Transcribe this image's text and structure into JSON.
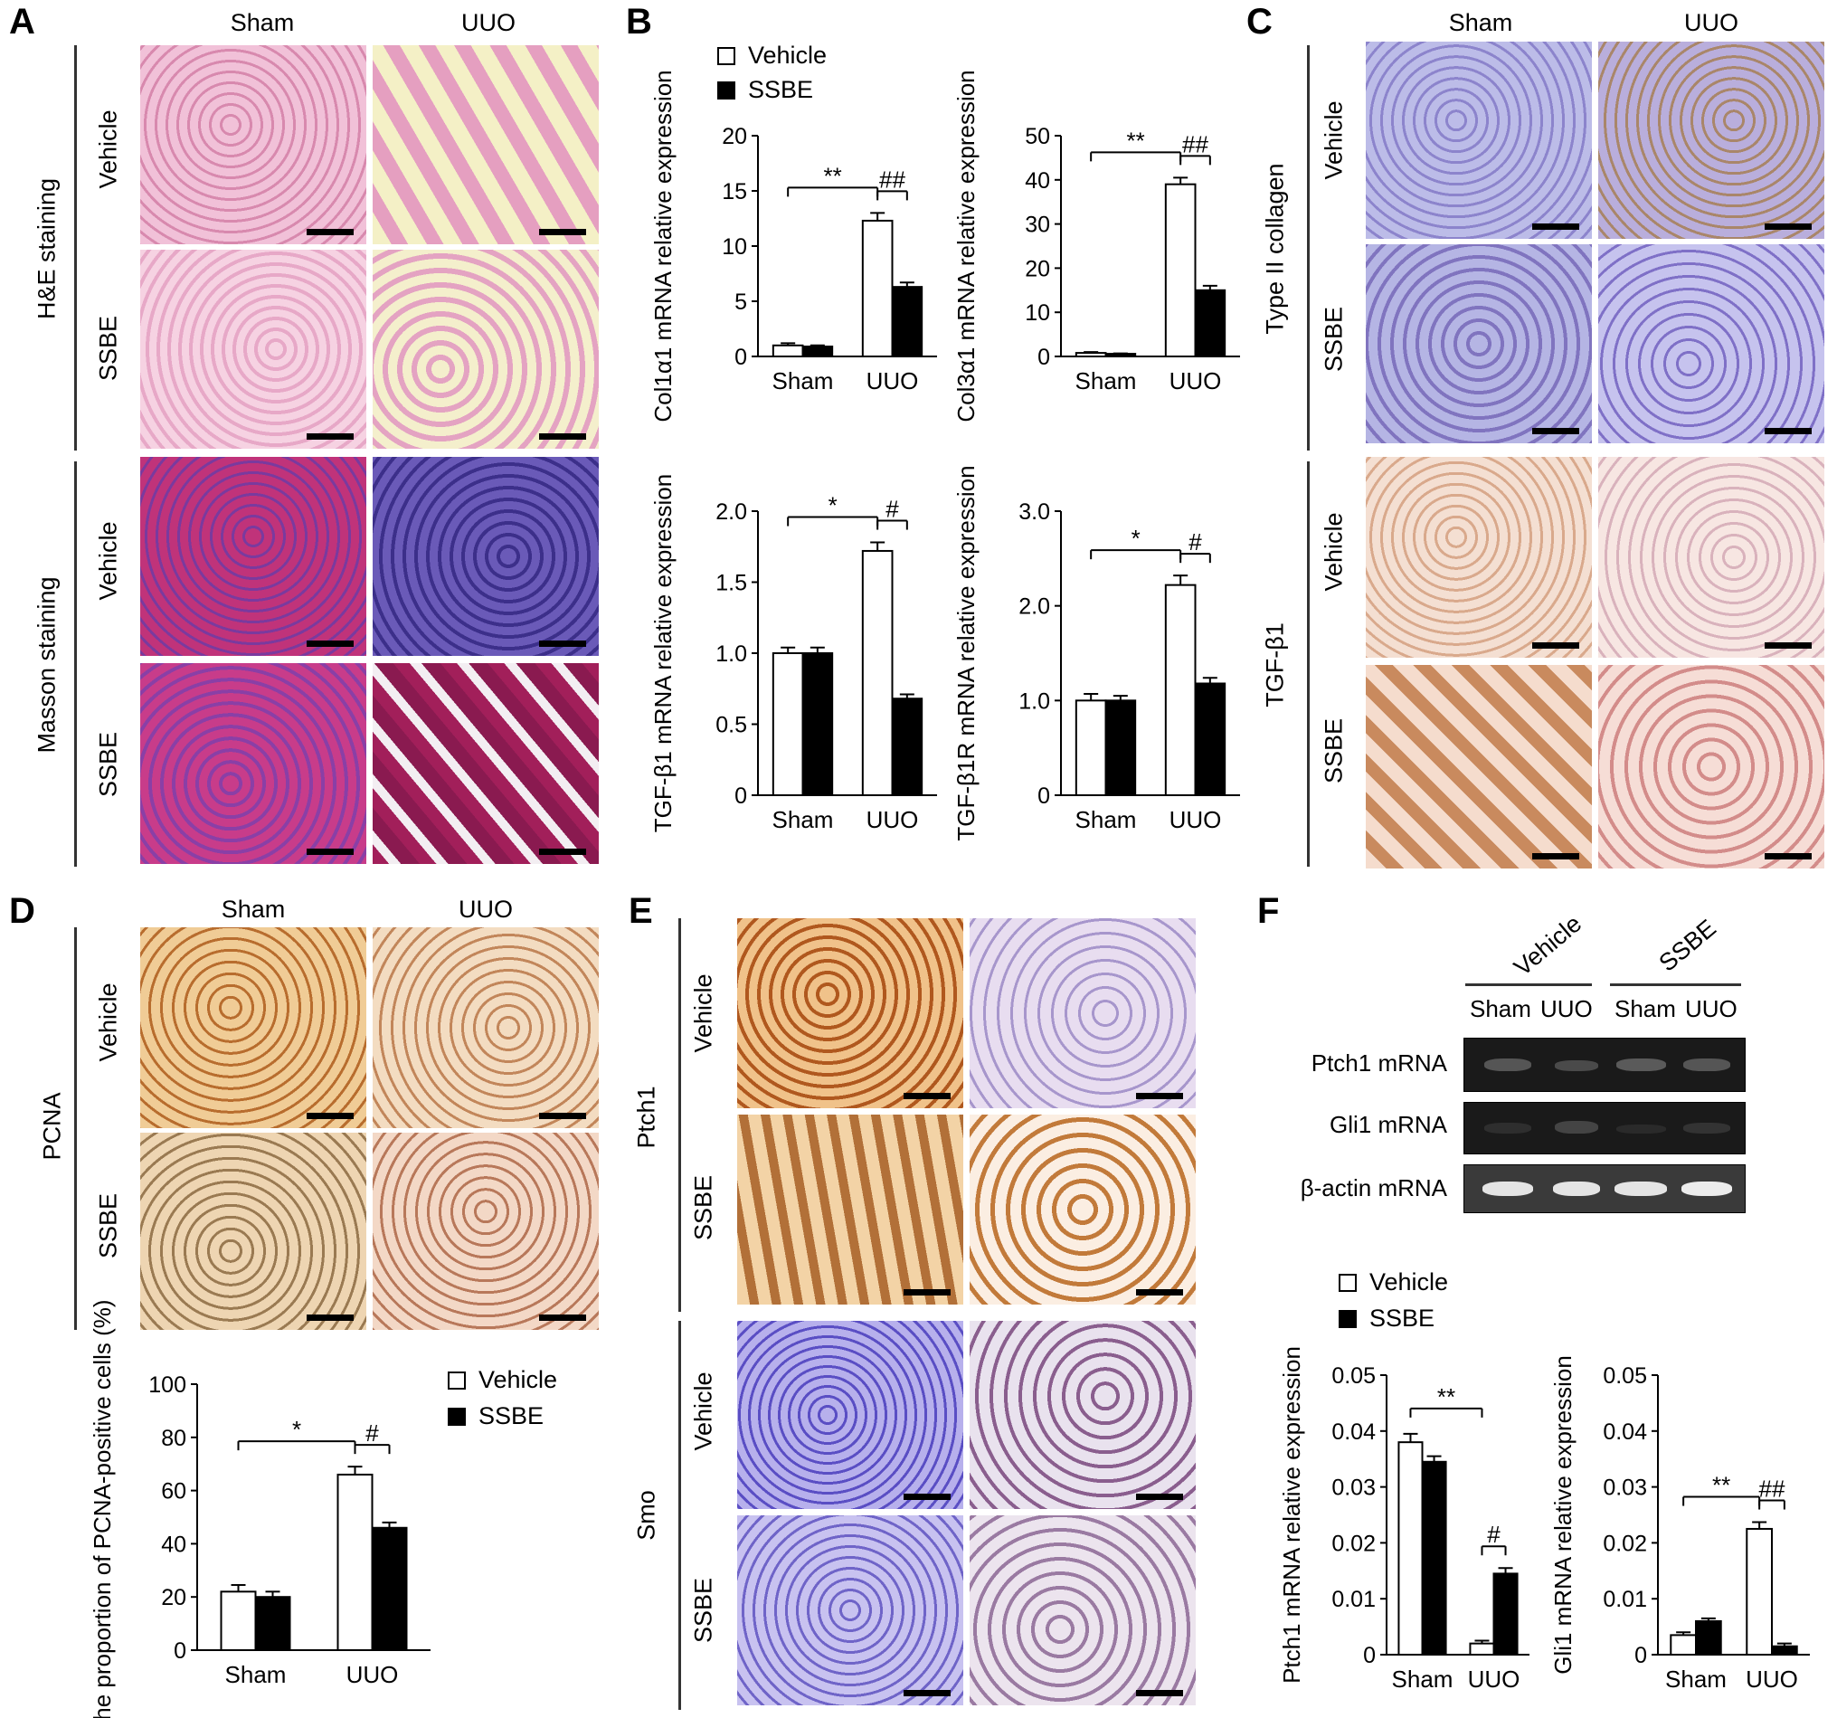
{
  "panels": {
    "A": {
      "letter": "A",
      "col_sham": "Sham",
      "col_uuo": "UUO",
      "group1": "H&E staining",
      "group2": "Masson staining",
      "row_vehicle": "Vehicle",
      "row_ssbe": "SSBE"
    },
    "B": {
      "letter": "B"
    },
    "C": {
      "letter": "C",
      "col_sham": "Sham",
      "col_uuo": "UUO",
      "group1": "Type II collagen",
      "group2": "TGF-β1",
      "row_vehicle": "Vehicle",
      "row_ssbe": "SSBE"
    },
    "D": {
      "letter": "D",
      "col_sham": "Sham",
      "col_uuo": "UUO",
      "group": "PCNA",
      "row_vehicle": "Vehicle",
      "row_ssbe": "SSBE"
    },
    "E": {
      "letter": "E",
      "group1": "Ptch1",
      "group2": "Smo",
      "row_vehicle": "Vehicle",
      "row_ssbe": "SSBE"
    },
    "F": {
      "letter": "F",
      "group_vehicle": "Vehicle",
      "group_ssbe": "SSBE",
      "lane_sham": "Sham",
      "lane_uuo": "UUO",
      "row1": "Ptch1 mRNA",
      "row2": "Gli1 mRNA",
      "row3": "β-actin mRNA"
    }
  },
  "legend": {
    "vehicle": "Vehicle",
    "ssbe": "SSBE"
  },
  "colors": {
    "vehicle": "#ffffff",
    "ssbe": "#000000",
    "he": "#e9a9c4",
    "masson_red": "#b0306e",
    "masson_blue": "#5a4aa8",
    "ihc_blue": "#9a9ad8",
    "ihc_brown": "#d9a36a",
    "gel": "#1a1a1a"
  },
  "chart_data": [
    {
      "id": "col1a1",
      "type": "bar",
      "categories": [
        "Sham",
        "UUO"
      ],
      "series": [
        {
          "name": "Vehicle",
          "values": [
            1.0,
            12.3
          ],
          "err": [
            0.2,
            0.7
          ]
        },
        {
          "name": "SSBE",
          "values": [
            0.9,
            6.3
          ],
          "err": [
            0.1,
            0.4
          ]
        }
      ],
      "ylabel": "Col1α1 mRNA relative expression",
      "ylim": [
        0,
        20
      ],
      "yticks": [
        "0",
        "5",
        "10",
        "15",
        "20"
      ],
      "sig": [
        {
          "label": "**",
          "from": [
            0,
            0
          ],
          "to": [
            1,
            0
          ]
        },
        {
          "label": "##",
          "from": [
            1,
            0
          ],
          "to": [
            1,
            1
          ]
        }
      ]
    },
    {
      "id": "col3a1",
      "type": "bar",
      "categories": [
        "Sham",
        "UUO"
      ],
      "series": [
        {
          "name": "Vehicle",
          "values": [
            0.8,
            39.0
          ],
          "err": [
            0.2,
            1.5
          ]
        },
        {
          "name": "SSBE",
          "values": [
            0.6,
            15.0
          ],
          "err": [
            0.1,
            1.0
          ]
        }
      ],
      "ylabel": "Col3α1 mRNA relative expression",
      "ylim": [
        0,
        50
      ],
      "yticks": [
        "0",
        "10",
        "20",
        "30",
        "40",
        "50"
      ],
      "sig": [
        {
          "label": "**",
          "from": [
            0,
            0
          ],
          "to": [
            1,
            0
          ]
        },
        {
          "label": "##",
          "from": [
            1,
            0
          ],
          "to": [
            1,
            1
          ]
        }
      ]
    },
    {
      "id": "tgfb1",
      "type": "bar",
      "categories": [
        "Sham",
        "UUO"
      ],
      "series": [
        {
          "name": "Vehicle",
          "values": [
            1.0,
            1.72
          ],
          "err": [
            0.04,
            0.06
          ]
        },
        {
          "name": "SSBE",
          "values": [
            1.0,
            0.68
          ],
          "err": [
            0.04,
            0.03
          ]
        }
      ],
      "ylabel": "TGF-β1 mRNA relative expression",
      "ylim": [
        0,
        2.0
      ],
      "yticks": [
        "0",
        "0.5",
        "1.0",
        "1.5",
        "2.0"
      ],
      "sig": [
        {
          "label": "*",
          "from": [
            0,
            0
          ],
          "to": [
            1,
            0
          ]
        },
        {
          "label": "#",
          "from": [
            1,
            0
          ],
          "to": [
            1,
            1
          ]
        }
      ]
    },
    {
      "id": "tgfb1r",
      "type": "bar",
      "categories": [
        "Sham",
        "UUO"
      ],
      "series": [
        {
          "name": "Vehicle",
          "values": [
            1.0,
            2.22
          ],
          "err": [
            0.07,
            0.1
          ]
        },
        {
          "name": "SSBE",
          "values": [
            1.0,
            1.18
          ],
          "err": [
            0.05,
            0.06
          ]
        }
      ],
      "ylabel": "TGF-β1R mRNA relative expression",
      "ylim": [
        0,
        3.0
      ],
      "yticks": [
        "0",
        "1.0",
        "2.0",
        "3.0"
      ],
      "sig": [
        {
          "label": "*",
          "from": [
            0,
            0
          ],
          "to": [
            1,
            0
          ]
        },
        {
          "label": "#",
          "from": [
            1,
            0
          ],
          "to": [
            1,
            1
          ]
        }
      ]
    },
    {
      "id": "pcna",
      "type": "bar",
      "categories": [
        "Sham",
        "UUO"
      ],
      "series": [
        {
          "name": "Vehicle",
          "values": [
            22,
            66
          ],
          "err": [
            2.5,
            3
          ]
        },
        {
          "name": "SSBE",
          "values": [
            20,
            46
          ],
          "err": [
            2,
            2
          ]
        }
      ],
      "ylabel": "The proportion of PCNA-positive cells (%)",
      "ylim": [
        0,
        100
      ],
      "yticks": [
        "0",
        "20",
        "40",
        "60",
        "80",
        "100"
      ],
      "sig": [
        {
          "label": "*",
          "from": [
            0,
            0
          ],
          "to": [
            1,
            0
          ]
        },
        {
          "label": "#",
          "from": [
            1,
            0
          ],
          "to": [
            1,
            1
          ]
        }
      ]
    },
    {
      "id": "ptch1",
      "type": "bar",
      "categories": [
        "Sham",
        "UUO"
      ],
      "series": [
        {
          "name": "Vehicle",
          "values": [
            0.038,
            0.002
          ],
          "err": [
            0.0015,
            0.0005
          ]
        },
        {
          "name": "SSBE",
          "values": [
            0.0345,
            0.0145
          ],
          "err": [
            0.001,
            0.001
          ]
        }
      ],
      "ylabel": "Ptch1 mRNA relative expression",
      "ylim": [
        0,
        0.05
      ],
      "yticks": [
        "0",
        "0.01",
        "0.02",
        "0.03",
        "0.04",
        "0.05"
      ],
      "sig": [
        {
          "label": "**",
          "from": [
            0,
            0
          ],
          "to": [
            1,
            0
          ]
        },
        {
          "label": "#",
          "from": [
            1,
            0
          ],
          "to": [
            1,
            1
          ]
        }
      ]
    },
    {
      "id": "gli1",
      "type": "bar",
      "categories": [
        "Sham",
        "UUO"
      ],
      "series": [
        {
          "name": "Vehicle",
          "values": [
            0.0035,
            0.0225
          ],
          "err": [
            0.0005,
            0.0012
          ]
        },
        {
          "name": "SSBE",
          "values": [
            0.006,
            0.0015
          ],
          "err": [
            0.0005,
            0.0005
          ]
        }
      ],
      "ylabel": "Gli1 mRNA relative expression",
      "ylim": [
        0,
        0.05
      ],
      "yticks": [
        "0",
        "0.01",
        "0.02",
        "0.03",
        "0.04",
        "0.05"
      ],
      "sig": [
        {
          "label": "**",
          "from": [
            0,
            0
          ],
          "to": [
            1,
            0
          ]
        },
        {
          "label": "##",
          "from": [
            1,
            0
          ],
          "to": [
            1,
            1
          ]
        }
      ]
    }
  ]
}
